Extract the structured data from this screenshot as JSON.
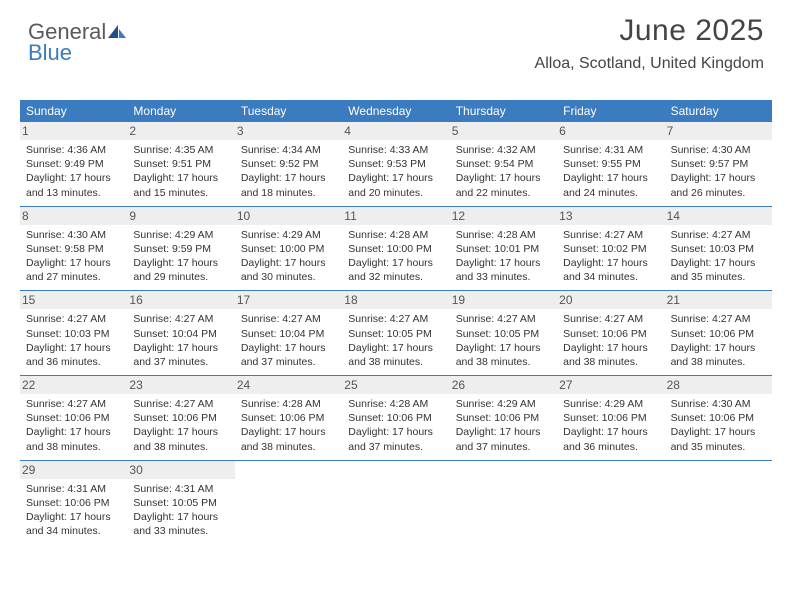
{
  "logo": {
    "text_top": "General",
    "text_bottom": "Blue"
  },
  "title": "June 2025",
  "location": "Alloa, Scotland, United Kingdom",
  "day_names": [
    "Sunday",
    "Monday",
    "Tuesday",
    "Wednesday",
    "Thursday",
    "Friday",
    "Saturday"
  ],
  "colors": {
    "accent": "#3b7bbf",
    "header_text": "#ffffff",
    "cell_number_bg": "#eeeeee",
    "body_text": "#333333",
    "title_text": "#444444"
  },
  "layout": {
    "columns": 7,
    "rows": 5,
    "font_family": "Arial",
    "title_fontsize_pt": 22,
    "location_fontsize_pt": 12,
    "day_header_fontsize_pt": 9,
    "cell_fontsize_pt": 8
  },
  "weeks": [
    [
      {
        "n": "1",
        "sunrise": "Sunrise: 4:36 AM",
        "sunset": "Sunset: 9:49 PM",
        "d1": "Daylight: 17 hours",
        "d2": "and 13 minutes."
      },
      {
        "n": "2",
        "sunrise": "Sunrise: 4:35 AM",
        "sunset": "Sunset: 9:51 PM",
        "d1": "Daylight: 17 hours",
        "d2": "and 15 minutes."
      },
      {
        "n": "3",
        "sunrise": "Sunrise: 4:34 AM",
        "sunset": "Sunset: 9:52 PM",
        "d1": "Daylight: 17 hours",
        "d2": "and 18 minutes."
      },
      {
        "n": "4",
        "sunrise": "Sunrise: 4:33 AM",
        "sunset": "Sunset: 9:53 PM",
        "d1": "Daylight: 17 hours",
        "d2": "and 20 minutes."
      },
      {
        "n": "5",
        "sunrise": "Sunrise: 4:32 AM",
        "sunset": "Sunset: 9:54 PM",
        "d1": "Daylight: 17 hours",
        "d2": "and 22 minutes."
      },
      {
        "n": "6",
        "sunrise": "Sunrise: 4:31 AM",
        "sunset": "Sunset: 9:55 PM",
        "d1": "Daylight: 17 hours",
        "d2": "and 24 minutes."
      },
      {
        "n": "7",
        "sunrise": "Sunrise: 4:30 AM",
        "sunset": "Sunset: 9:57 PM",
        "d1": "Daylight: 17 hours",
        "d2": "and 26 minutes."
      }
    ],
    [
      {
        "n": "8",
        "sunrise": "Sunrise: 4:30 AM",
        "sunset": "Sunset: 9:58 PM",
        "d1": "Daylight: 17 hours",
        "d2": "and 27 minutes."
      },
      {
        "n": "9",
        "sunrise": "Sunrise: 4:29 AM",
        "sunset": "Sunset: 9:59 PM",
        "d1": "Daylight: 17 hours",
        "d2": "and 29 minutes."
      },
      {
        "n": "10",
        "sunrise": "Sunrise: 4:29 AM",
        "sunset": "Sunset: 10:00 PM",
        "d1": "Daylight: 17 hours",
        "d2": "and 30 minutes."
      },
      {
        "n": "11",
        "sunrise": "Sunrise: 4:28 AM",
        "sunset": "Sunset: 10:00 PM",
        "d1": "Daylight: 17 hours",
        "d2": "and 32 minutes."
      },
      {
        "n": "12",
        "sunrise": "Sunrise: 4:28 AM",
        "sunset": "Sunset: 10:01 PM",
        "d1": "Daylight: 17 hours",
        "d2": "and 33 minutes."
      },
      {
        "n": "13",
        "sunrise": "Sunrise: 4:27 AM",
        "sunset": "Sunset: 10:02 PM",
        "d1": "Daylight: 17 hours",
        "d2": "and 34 minutes."
      },
      {
        "n": "14",
        "sunrise": "Sunrise: 4:27 AM",
        "sunset": "Sunset: 10:03 PM",
        "d1": "Daylight: 17 hours",
        "d2": "and 35 minutes."
      }
    ],
    [
      {
        "n": "15",
        "sunrise": "Sunrise: 4:27 AM",
        "sunset": "Sunset: 10:03 PM",
        "d1": "Daylight: 17 hours",
        "d2": "and 36 minutes."
      },
      {
        "n": "16",
        "sunrise": "Sunrise: 4:27 AM",
        "sunset": "Sunset: 10:04 PM",
        "d1": "Daylight: 17 hours",
        "d2": "and 37 minutes."
      },
      {
        "n": "17",
        "sunrise": "Sunrise: 4:27 AM",
        "sunset": "Sunset: 10:04 PM",
        "d1": "Daylight: 17 hours",
        "d2": "and 37 minutes."
      },
      {
        "n": "18",
        "sunrise": "Sunrise: 4:27 AM",
        "sunset": "Sunset: 10:05 PM",
        "d1": "Daylight: 17 hours",
        "d2": "and 38 minutes."
      },
      {
        "n": "19",
        "sunrise": "Sunrise: 4:27 AM",
        "sunset": "Sunset: 10:05 PM",
        "d1": "Daylight: 17 hours",
        "d2": "and 38 minutes."
      },
      {
        "n": "20",
        "sunrise": "Sunrise: 4:27 AM",
        "sunset": "Sunset: 10:06 PM",
        "d1": "Daylight: 17 hours",
        "d2": "and 38 minutes."
      },
      {
        "n": "21",
        "sunrise": "Sunrise: 4:27 AM",
        "sunset": "Sunset: 10:06 PM",
        "d1": "Daylight: 17 hours",
        "d2": "and 38 minutes."
      }
    ],
    [
      {
        "n": "22",
        "sunrise": "Sunrise: 4:27 AM",
        "sunset": "Sunset: 10:06 PM",
        "d1": "Daylight: 17 hours",
        "d2": "and 38 minutes."
      },
      {
        "n": "23",
        "sunrise": "Sunrise: 4:27 AM",
        "sunset": "Sunset: 10:06 PM",
        "d1": "Daylight: 17 hours",
        "d2": "and 38 minutes."
      },
      {
        "n": "24",
        "sunrise": "Sunrise: 4:28 AM",
        "sunset": "Sunset: 10:06 PM",
        "d1": "Daylight: 17 hours",
        "d2": "and 38 minutes."
      },
      {
        "n": "25",
        "sunrise": "Sunrise: 4:28 AM",
        "sunset": "Sunset: 10:06 PM",
        "d1": "Daylight: 17 hours",
        "d2": "and 37 minutes."
      },
      {
        "n": "26",
        "sunrise": "Sunrise: 4:29 AM",
        "sunset": "Sunset: 10:06 PM",
        "d1": "Daylight: 17 hours",
        "d2": "and 37 minutes."
      },
      {
        "n": "27",
        "sunrise": "Sunrise: 4:29 AM",
        "sunset": "Sunset: 10:06 PM",
        "d1": "Daylight: 17 hours",
        "d2": "and 36 minutes."
      },
      {
        "n": "28",
        "sunrise": "Sunrise: 4:30 AM",
        "sunset": "Sunset: 10:06 PM",
        "d1": "Daylight: 17 hours",
        "d2": "and 35 minutes."
      }
    ],
    [
      {
        "n": "29",
        "sunrise": "Sunrise: 4:31 AM",
        "sunset": "Sunset: 10:06 PM",
        "d1": "Daylight: 17 hours",
        "d2": "and 34 minutes."
      },
      {
        "n": "30",
        "sunrise": "Sunrise: 4:31 AM",
        "sunset": "Sunset: 10:05 PM",
        "d1": "Daylight: 17 hours",
        "d2": "and 33 minutes."
      },
      null,
      null,
      null,
      null,
      null
    ]
  ]
}
